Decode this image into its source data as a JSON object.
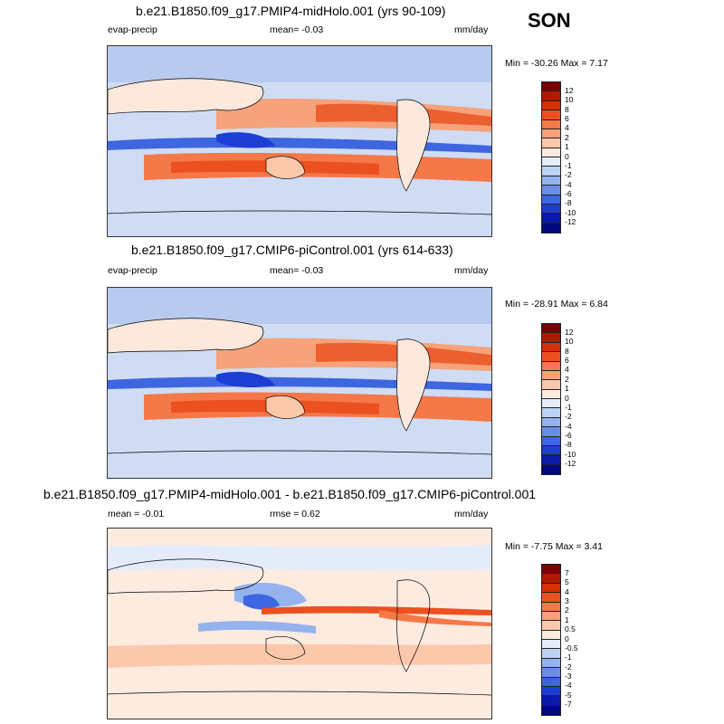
{
  "season": "SON",
  "panels": [
    {
      "title": "b.e21.B1850.f09_g17.PMIP4-midHolo.001 (yrs 90-109)",
      "left_label": "evap-precip",
      "center_label": "mean=  -0.03",
      "units": "mm/day",
      "minmax": "Min = -30.26 Max =   7.17",
      "levels": [
        "12",
        "10",
        "8",
        "6",
        "4",
        "2",
        "1",
        "0",
        "-1",
        "-2",
        "-4",
        "-6",
        "-8",
        "-10",
        "-12"
      ]
    },
    {
      "title": "b.e21.B1850.f09_g17.CMIP6-piControl.001 (yrs 614-633)",
      "left_label": "evap-precip",
      "center_label": "mean=  -0.03",
      "units": "mm/day",
      "minmax": "Min = -28.91 Max =   6.84",
      "levels": [
        "12",
        "10",
        "8",
        "6",
        "4",
        "2",
        "1",
        "0",
        "-1",
        "-2",
        "-4",
        "-6",
        "-8",
        "-10",
        "-12"
      ]
    },
    {
      "title": "b.e21.B1850.f09_g17.PMIP4-midHolo.001 - b.e21.B1850.f09_g17.CMIP6-piControl.001",
      "left_label": "mean =  -0.01",
      "center_label": "rmse =   0.62",
      "units": "mm/day",
      "minmax": "Min =  -7.75 Max =   3.41",
      "levels": [
        "7",
        "5",
        "4",
        "3",
        "2",
        "1",
        "0.5",
        "0",
        "-0.5",
        "-1",
        "-2",
        "-3",
        "-4",
        "-5",
        "-7"
      ]
    }
  ],
  "colorbar_colors": [
    "#7a0000",
    "#b01800",
    "#d83000",
    "#ec5020",
    "#f57848",
    "#f8a07a",
    "#fcc8ac",
    "#fdebe0",
    "#e4ecfa",
    "#bcd2f4",
    "#94b2ee",
    "#6a8ee8",
    "#3e66e0",
    "#1c3ed4",
    "#0a1aa8",
    "#000880"
  ]
}
